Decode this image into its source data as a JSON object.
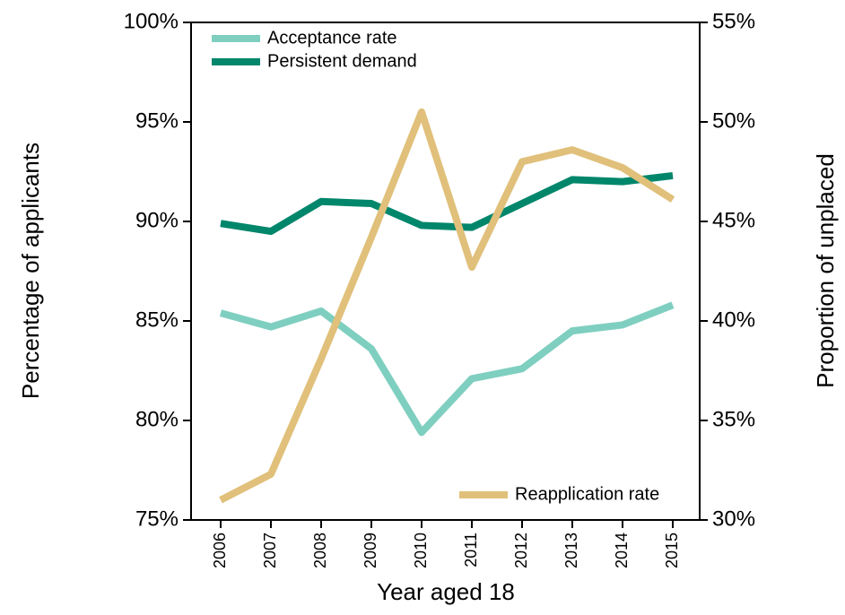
{
  "chart_data": {
    "type": "line",
    "x_label": "Year aged 18",
    "y_label": "Percentage of applicants",
    "y2_label": "Proportion of unplaced",
    "categories": [
      "2006",
      "2007",
      "2008",
      "2009",
      "2010",
      "2011",
      "2012",
      "2013",
      "2014",
      "2015"
    ],
    "series": [
      {
        "name": "Acceptance rate",
        "color": "#7fcfc0",
        "axis": "y",
        "values": [
          85.4,
          84.7,
          85.5,
          83.6,
          79.4,
          82.1,
          82.6,
          84.5,
          84.8,
          85.8
        ]
      },
      {
        "name": "Persistent demand",
        "color": "#00866b",
        "axis": "y",
        "values": [
          89.9,
          89.5,
          91.0,
          90.9,
          89.8,
          89.7,
          90.9,
          92.1,
          92.0,
          92.3
        ]
      },
      {
        "name": "Reapplication rate",
        "color": "#e0c07a",
        "axis": "y2",
        "values": [
          31.0,
          32.3,
          38.1,
          44.2,
          50.5,
          42.7,
          48.0,
          48.6,
          47.7,
          46.1
        ]
      }
    ],
    "ylim": [
      75,
      100
    ],
    "yticks": [
      {
        "value": 75,
        "label": "75%"
      },
      {
        "value": 80,
        "label": "80%"
      },
      {
        "value": 85,
        "label": "85%"
      },
      {
        "value": 90,
        "label": "90%"
      },
      {
        "value": 95,
        "label": "95%"
      },
      {
        "value": 100,
        "label": "100%"
      }
    ],
    "y2lim": [
      30,
      55
    ],
    "y2ticks": [
      {
        "value": 30,
        "label": "30%"
      },
      {
        "value": 35,
        "label": "35%"
      },
      {
        "value": 40,
        "label": "40%"
      },
      {
        "value": 45,
        "label": "45%"
      },
      {
        "value": 50,
        "label": "50%"
      },
      {
        "value": 55,
        "label": "55%"
      }
    ],
    "legend_loc": "upper left",
    "legend2_loc": "lower right",
    "grid": false
  }
}
